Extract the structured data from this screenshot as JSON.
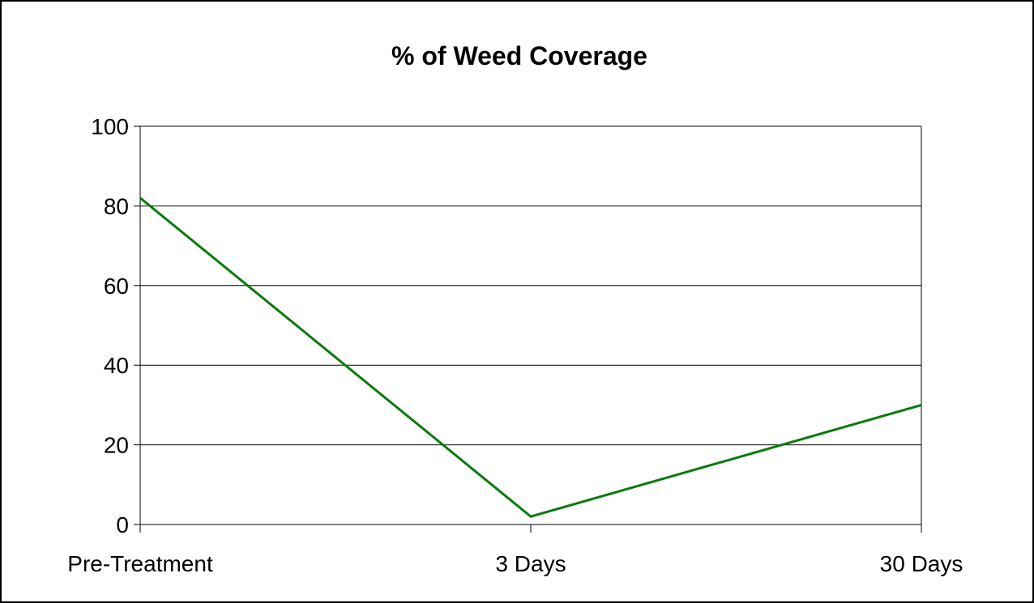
{
  "chart_data": {
    "type": "line",
    "title": "% of Weed Coverage",
    "xlabel": "",
    "ylabel": "",
    "categories": [
      "Pre-Treatment",
      "3 Days",
      "30 Days"
    ],
    "series": [
      {
        "values": [
          82,
          2,
          30
        ],
        "color": "#0a7a0a"
      }
    ],
    "ylim": [
      0,
      100
    ],
    "y_ticks": [
      0,
      20,
      40,
      60,
      80,
      100
    ],
    "grid": true,
    "legend": "none"
  }
}
